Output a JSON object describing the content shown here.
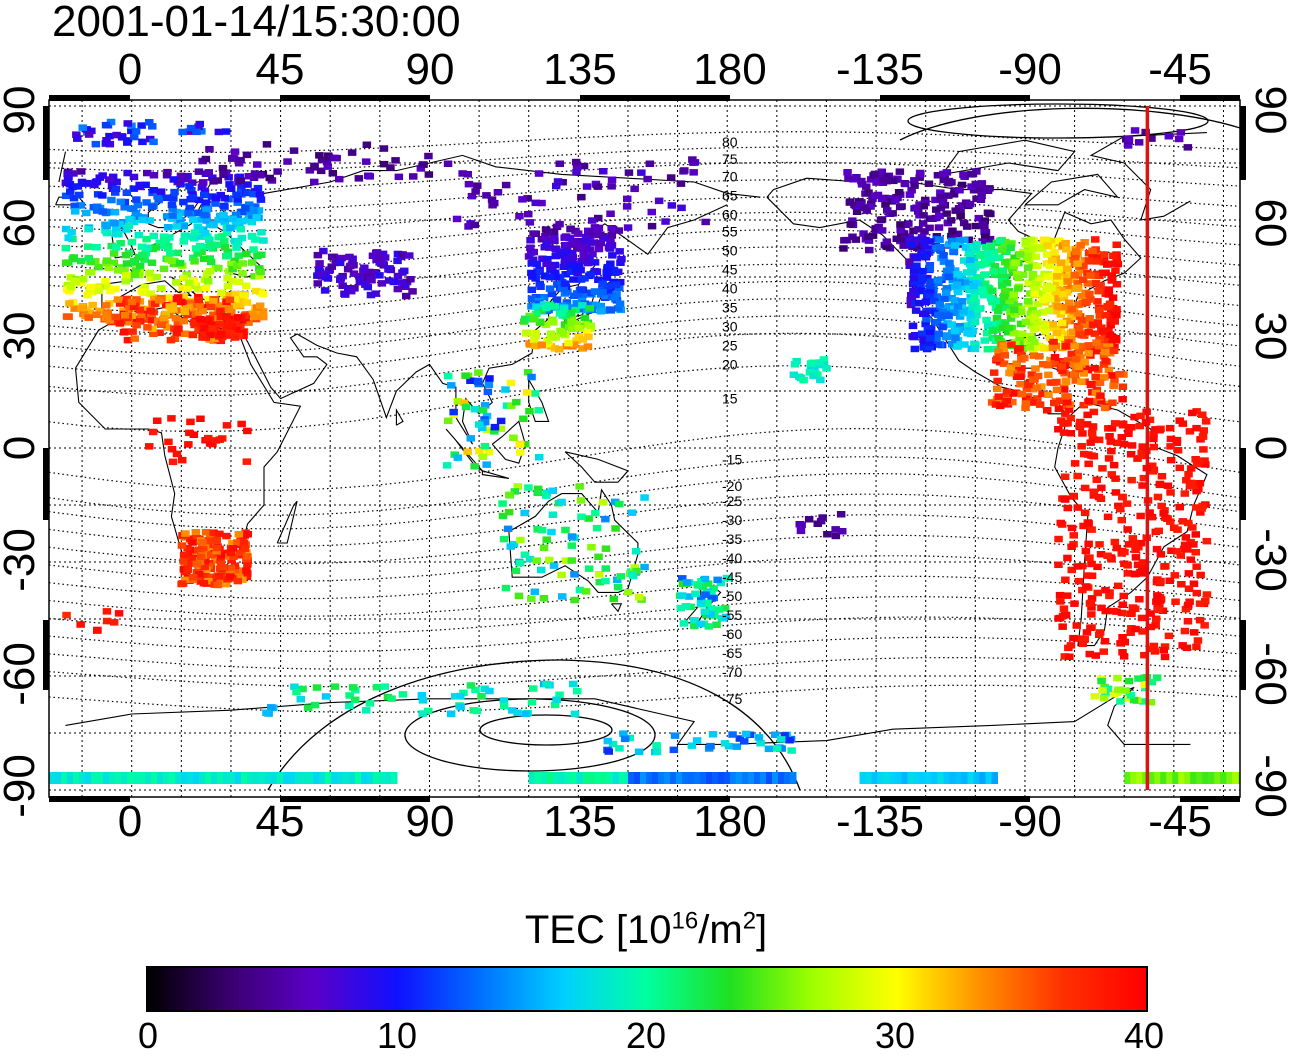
{
  "title": "2001-01-14/15:30:00",
  "axes": {
    "lon_ticks": [
      "0",
      "45",
      "90",
      "135",
      "180",
      "-135",
      "-90",
      "-45"
    ],
    "lat_ticks": [
      "90",
      "60",
      "30",
      "0",
      "-30",
      "-60",
      "-90"
    ]
  },
  "contours": {
    "labels": [
      "80",
      "75",
      "70",
      "65",
      "60",
      "55",
      "50",
      "45",
      "40",
      "35",
      "30",
      "25",
      "20",
      "15",
      "-15",
      "-20",
      "-25",
      "-30",
      "-35",
      "-40",
      "-45",
      "-50",
      "-55",
      "-60",
      "-65",
      "-70",
      "-75"
    ]
  },
  "terminator_line": {
    "longitude": -53,
    "color": "#e01010"
  },
  "colorbar": {
    "title_prefix": "TEC  [10",
    "title_sup1": "16",
    "title_mid": "/m",
    "title_sup2": "2",
    "title_suffix": "]",
    "min": 0,
    "max": 40,
    "tick_labels": [
      "0",
      "10",
      "20",
      "30",
      "40"
    ],
    "stops": [
      "#000000",
      "#3a0070",
      "#5a00c8",
      "#1010ff",
      "#0070ff",
      "#00d0ff",
      "#00ffa0",
      "#20e020",
      "#a0ff00",
      "#ffff00",
      "#ff9000",
      "#ff3000",
      "#ff0000"
    ]
  }
}
